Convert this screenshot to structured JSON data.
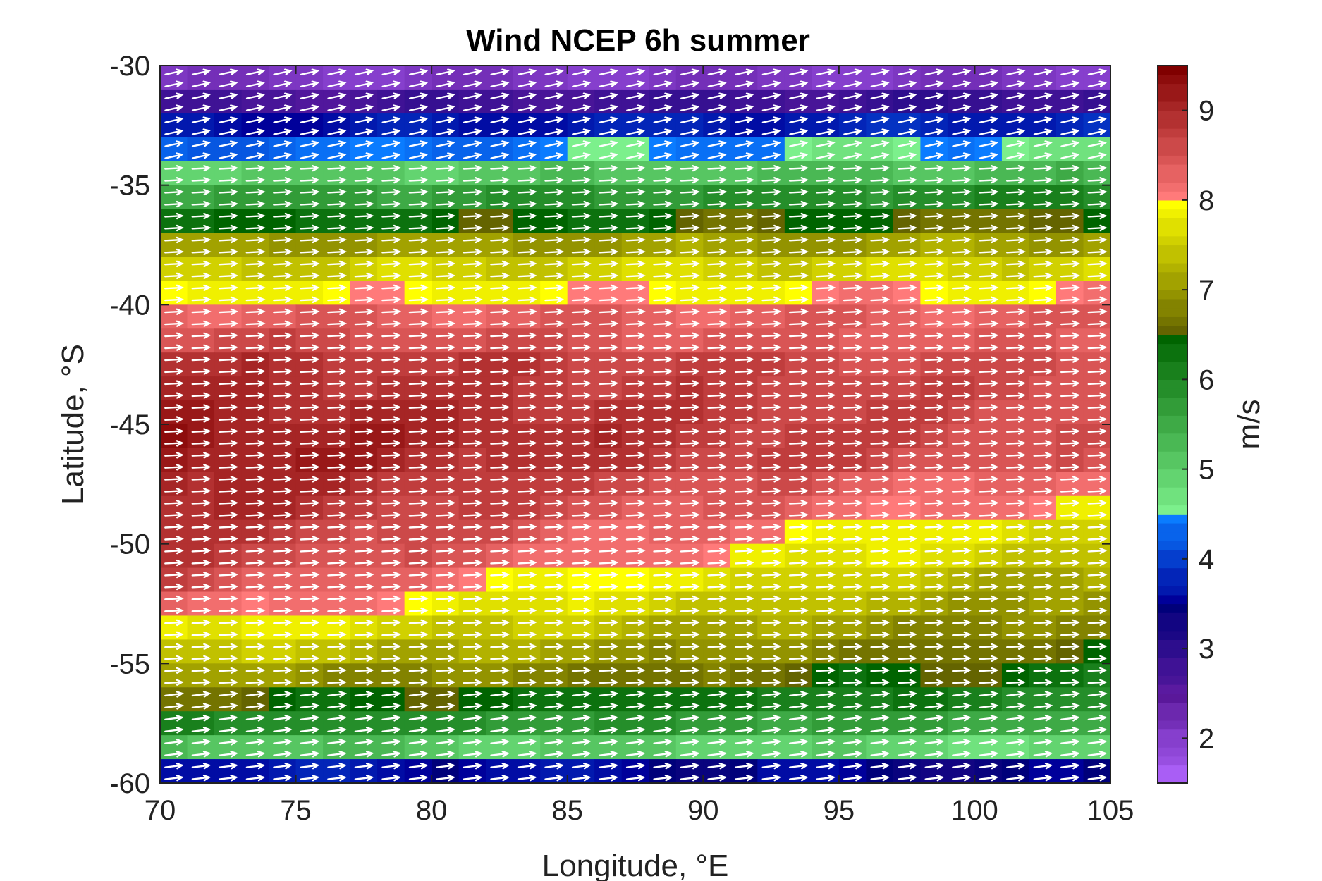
{
  "chart_data": {
    "type": "heatmap",
    "title": "Wind NCEP 6h summer",
    "xlabel": "Longitude, °E",
    "ylabel": "Latitude, °S",
    "colorbar_label": "m/s",
    "xlim": [
      70,
      105
    ],
    "ylim": [
      -60,
      -30
    ],
    "x_ticks": [
      70,
      75,
      80,
      85,
      90,
      95,
      100,
      105
    ],
    "y_ticks": [
      -30,
      -35,
      -40,
      -45,
      -50,
      -55,
      -60
    ],
    "colorbar_range": [
      1.5,
      9.5
    ],
    "colorbar_ticks": [
      2,
      3,
      4,
      5,
      6,
      7,
      8,
      9
    ],
    "colormap": [
      {
        "from": 1.5,
        "to": 2.5,
        "low": "#b266ff",
        "high": "#5a189a"
      },
      {
        "from": 2.5,
        "to": 3.5,
        "low": "#5a1aa0",
        "high": "#00007a"
      },
      {
        "from": 3.5,
        "to": 4.5,
        "low": "#00009a",
        "high": "#0a7cff"
      },
      {
        "from": 4.5,
        "to": 6.5,
        "low": "#7cf08c",
        "high": "#006400"
      },
      {
        "from": 6.5,
        "to": 8.0,
        "low": "#646400",
        "high": "#ffff00"
      },
      {
        "from": 8.0,
        "to": 9.5,
        "low": "#ff7a7a",
        "high": "#800000"
      }
    ],
    "grid": "off",
    "grid_lon_start": 70,
    "grid_lon_step": 1,
    "grid_lat_start": -30.5,
    "grid_lat_step": -1,
    "speed_rows": [
      {
        "lat": -30.5,
        "base": 2.1,
        "slope": 0.0
      },
      {
        "lat": -31.5,
        "base": 2.7,
        "slope": 0.2
      },
      {
        "lat": -32.5,
        "base": 3.6,
        "slope": 0.2
      },
      {
        "lat": -33.5,
        "base": 4.3,
        "slope": 0.3
      },
      {
        "lat": -34.5,
        "base": 5.0,
        "slope": 0.3
      },
      {
        "lat": -35.5,
        "base": 5.6,
        "slope": 0.4
      },
      {
        "lat": -36.5,
        "base": 6.3,
        "slope": 0.3
      },
      {
        "lat": -37.5,
        "base": 7.0,
        "slope": 0.1
      },
      {
        "lat": -38.5,
        "base": 7.5,
        "slope": 0.1
      },
      {
        "lat": -39.5,
        "base": 7.9,
        "slope": 0.1
      },
      {
        "lat": -40.5,
        "base": 8.3,
        "slope": 0.0
      },
      {
        "lat": -41.5,
        "base": 8.6,
        "slope": -0.3
      },
      {
        "lat": -42.5,
        "base": 8.9,
        "slope": -0.4
      },
      {
        "lat": -43.5,
        "base": 9.0,
        "slope": -0.5
      },
      {
        "lat": -44.5,
        "base": 9.1,
        "slope": -0.6
      },
      {
        "lat": -45.5,
        "base": 9.2,
        "slope": -0.7
      },
      {
        "lat": -46.5,
        "base": 9.2,
        "slope": -0.8
      },
      {
        "lat": -47.5,
        "base": 9.1,
        "slope": -1.0
      },
      {
        "lat": -48.5,
        "base": 9.0,
        "slope": -1.1
      },
      {
        "lat": -49.5,
        "base": 8.9,
        "slope": -1.3
      },
      {
        "lat": -50.5,
        "base": 8.8,
        "slope": -1.4
      },
      {
        "lat": -51.5,
        "base": 8.6,
        "slope": -1.5
      },
      {
        "lat": -52.5,
        "base": 8.3,
        "slope": -1.4
      },
      {
        "lat": -53.5,
        "base": 7.9,
        "slope": -1.2
      },
      {
        "lat": -54.5,
        "base": 7.5,
        "slope": -1.0
      },
      {
        "lat": -55.5,
        "base": 7.1,
        "slope": -0.8
      },
      {
        "lat": -56.5,
        "base": 6.6,
        "slope": -0.6
      },
      {
        "lat": -57.5,
        "base": 6.0,
        "slope": -0.5
      },
      {
        "lat": -58.5,
        "base": 5.2,
        "slope": -0.4
      },
      {
        "lat": -59.5,
        "base": 3.7,
        "slope": -0.3
      }
    ],
    "wind_direction": "westerly, toward east with slight northward tilt at southern and northern edges"
  }
}
